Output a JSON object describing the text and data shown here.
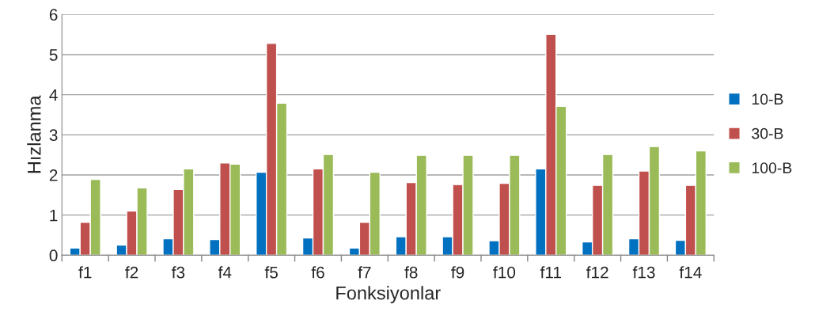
{
  "chart_data": {
    "type": "bar",
    "xlabel": "Fonksiyonlar",
    "ylabel": "Hızlanma",
    "categories": [
      "f1",
      "f2",
      "f3",
      "f4",
      "f5",
      "f6",
      "f7",
      "f8",
      "f9",
      "f10",
      "f11",
      "f12",
      "f13",
      "f14"
    ],
    "series": [
      {
        "name": "10-B",
        "color": "#0070c0",
        "values": [
          0.18,
          0.25,
          0.41,
          0.39,
          2.07,
          0.43,
          0.18,
          0.46,
          0.46,
          0.36,
          2.15,
          0.33,
          0.41,
          0.37
        ]
      },
      {
        "name": "30-B",
        "color": "#c0504d",
        "values": [
          0.82,
          1.1,
          1.64,
          2.3,
          5.28,
          2.15,
          0.82,
          1.81,
          1.76,
          1.79,
          5.51,
          1.74,
          2.1,
          1.74
        ]
      },
      {
        "name": "100-B",
        "color": "#9bbb59",
        "values": [
          1.89,
          1.68,
          2.15,
          2.27,
          3.79,
          2.51,
          2.07,
          2.49,
          2.49,
          2.49,
          3.71,
          2.51,
          2.71,
          2.6
        ]
      }
    ],
    "ylim": [
      0,
      6
    ],
    "yticks": [
      0,
      1,
      2,
      3,
      4,
      5,
      6
    ],
    "grid": "y",
    "legend": "right"
  }
}
